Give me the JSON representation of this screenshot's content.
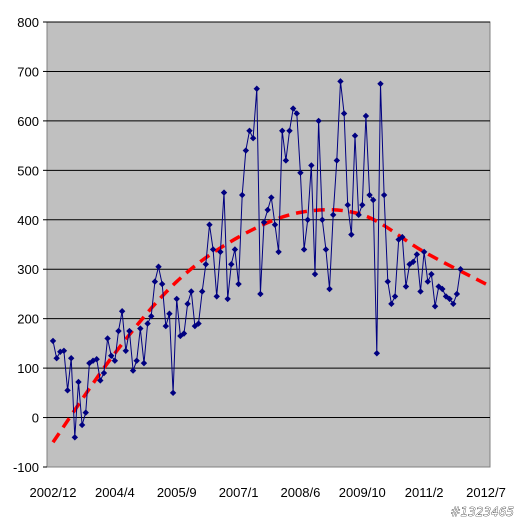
{
  "watermark": "#1323465",
  "chart_data": {
    "type": "line",
    "ylim": [
      -100,
      800
    ],
    "yticks": [
      -100,
      0,
      100,
      200,
      300,
      400,
      500,
      600,
      700,
      800
    ],
    "xtick_labels": [
      "2002/12",
      "2004/4",
      "2005/9",
      "2007/1",
      "2008/6",
      "2009/10",
      "2011/2",
      "2012/7"
    ],
    "grid": true,
    "plot_background": "#C0C0C0",
    "series": [
      {
        "style": "line-with-diamond-markers",
        "color": "#000080",
        "x_start": "2002/12",
        "x_step": "1 month",
        "values": [
          155,
          120,
          133,
          135,
          55,
          120,
          -40,
          72,
          -15,
          10,
          110,
          115,
          118,
          75,
          90,
          160,
          125,
          115,
          175,
          215,
          135,
          175,
          95,
          115,
          180,
          110,
          190,
          205,
          275,
          305,
          270,
          185,
          210,
          50,
          240,
          165,
          170,
          230,
          255,
          185,
          190,
          255,
          310,
          390,
          340,
          245,
          335,
          455,
          240,
          310,
          340,
          270,
          450,
          540,
          580,
          565,
          665,
          250,
          395,
          420,
          445,
          390,
          335,
          580,
          520,
          580,
          625,
          615,
          495,
          340,
          400,
          510,
          290,
          600,
          400,
          340,
          260,
          410,
          520,
          680,
          615,
          430,
          370,
          570,
          410,
          430,
          610,
          450,
          440,
          130,
          675,
          450,
          275,
          230,
          245,
          360,
          365,
          265,
          310,
          315,
          330,
          255,
          335,
          275,
          290,
          225,
          265,
          260,
          245,
          240,
          230,
          250,
          300
        ],
        "markers": "diamond"
      },
      {
        "style": "dashed-trend",
        "color": "#FF0000",
        "trend_values_at_ticks": [
          -50,
          130,
          275,
          365,
          415,
          410,
          335,
          270
        ]
      }
    ]
  }
}
